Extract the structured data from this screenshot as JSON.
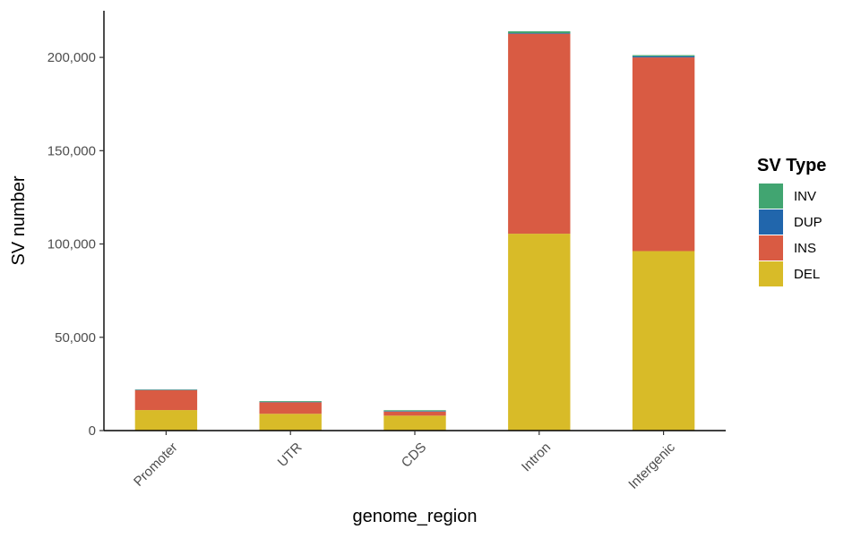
{
  "chart_data": {
    "type": "bar",
    "stacked": true,
    "categories": [
      "Promoter",
      "UTR",
      "CDS",
      "Intron",
      "Intergenic"
    ],
    "series": [
      {
        "name": "DEL",
        "color": "#D8BB28",
        "values": [
          11000,
          9000,
          8000,
          105500,
          96200
        ]
      },
      {
        "name": "INS",
        "color": "#D95B43",
        "values": [
          10700,
          6200,
          2200,
          107200,
          103800
        ]
      },
      {
        "name": "DUP",
        "color": "#2166AC",
        "values": [
          200,
          200,
          300,
          300,
          600
        ]
      },
      {
        "name": "INV",
        "color": "#41A571",
        "values": [
          200,
          400,
          400,
          1000,
          600
        ]
      }
    ],
    "xlabel": "genome_region",
    "ylabel": "SV number",
    "ylim": [
      0,
      225000
    ],
    "yticks": [
      0,
      50000,
      100000,
      150000,
      200000
    ],
    "ytick_labels": [
      "0",
      "50,000",
      "100,000",
      "150,000",
      "200,000"
    ],
    "grid": false,
    "legend": {
      "title": "SV Type",
      "position": "right",
      "entries": [
        {
          "label": "INV",
          "color": "#41A571"
        },
        {
          "label": "DUP",
          "color": "#2166AC"
        },
        {
          "label": "INS",
          "color": "#D95B43"
        },
        {
          "label": "DEL",
          "color": "#D8BB28"
        }
      ]
    }
  }
}
